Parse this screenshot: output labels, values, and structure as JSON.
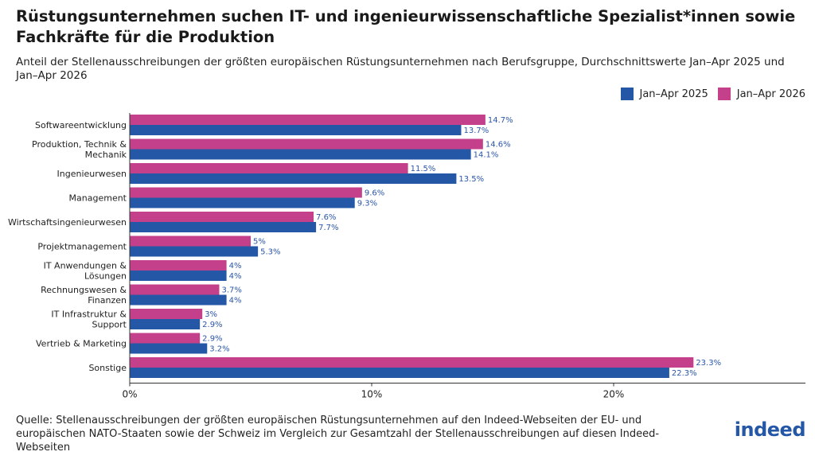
{
  "title": "Rüstungsunternehmen suchen IT- und ingenieurwissenschaftliche Spezialist*innen sowie Fachkräfte für die Produktion",
  "subtitle": "Anteil der Stellenausschreibungen der größten europäischen Rüstungsunternehmen nach Berufsgruppe, Durchschnittswerte Jan–Apr 2025 und Jan–Apr 2026",
  "source": "Quelle: Stellenausschreibungen der größten europäischen Rüstungsunternehmen auf den Indeed-Webseiten der EU- und europäischen NATO-Staaten sowie der Schweiz im Vergleich zur Gesamtzahl der Stellenausschreibungen auf diesen Indeed-Webseiten",
  "logo_text": "indeed",
  "colors": {
    "jan_apr_2025": "#2557a7",
    "jan_apr_2026": "#c4408a"
  },
  "chart_data": {
    "type": "bar",
    "orientation": "horizontal",
    "categories": [
      [
        "Softwareentwicklung"
      ],
      [
        "Produktion, Technik &",
        "Mechanik"
      ],
      [
        "Ingenieurwesen"
      ],
      [
        "Management"
      ],
      [
        "Wirtschaftsingenieurwesen"
      ],
      [
        "Projektmanagement"
      ],
      [
        "IT Anwendungen &",
        "Lösungen"
      ],
      [
        "Rechnungswesen &",
        "Finanzen"
      ],
      [
        "IT Infrastruktur &",
        "Support"
      ],
      [
        "Vertrieb & Marketing"
      ],
      [
        "Sonstige"
      ]
    ],
    "series": [
      {
        "name": "Jan–Apr 2026",
        "values": [
          14.7,
          14.6,
          11.5,
          9.6,
          7.6,
          5,
          4,
          3.7,
          3,
          2.9,
          23.3
        ],
        "labels": [
          "14.7%",
          "14.6%",
          "11.5%",
          "9.6%",
          "7.6%",
          "5%",
          "4%",
          "3.7%",
          "3%",
          "2.9%",
          "23.3%"
        ]
      },
      {
        "name": "Jan–Apr 2025",
        "values": [
          13.7,
          14.1,
          13.5,
          9.3,
          7.7,
          5.3,
          4,
          4,
          2.9,
          3.2,
          22.3
        ],
        "labels": [
          "13.7%",
          "14.1%",
          "13.5%",
          "9.3%",
          "7.7%",
          "5.3%",
          "4%",
          "4%",
          "2.9%",
          "3.2%",
          "22.3%"
        ]
      }
    ],
    "legend": [
      "Jan–Apr 2025",
      "Jan–Apr 2026"
    ],
    "legend_placement": "top-right",
    "xlim": [
      0,
      28
    ],
    "xticks": [
      0,
      10,
      20
    ],
    "xtick_labels": [
      "0%",
      "10%",
      "20%"
    ],
    "grid": false
  }
}
